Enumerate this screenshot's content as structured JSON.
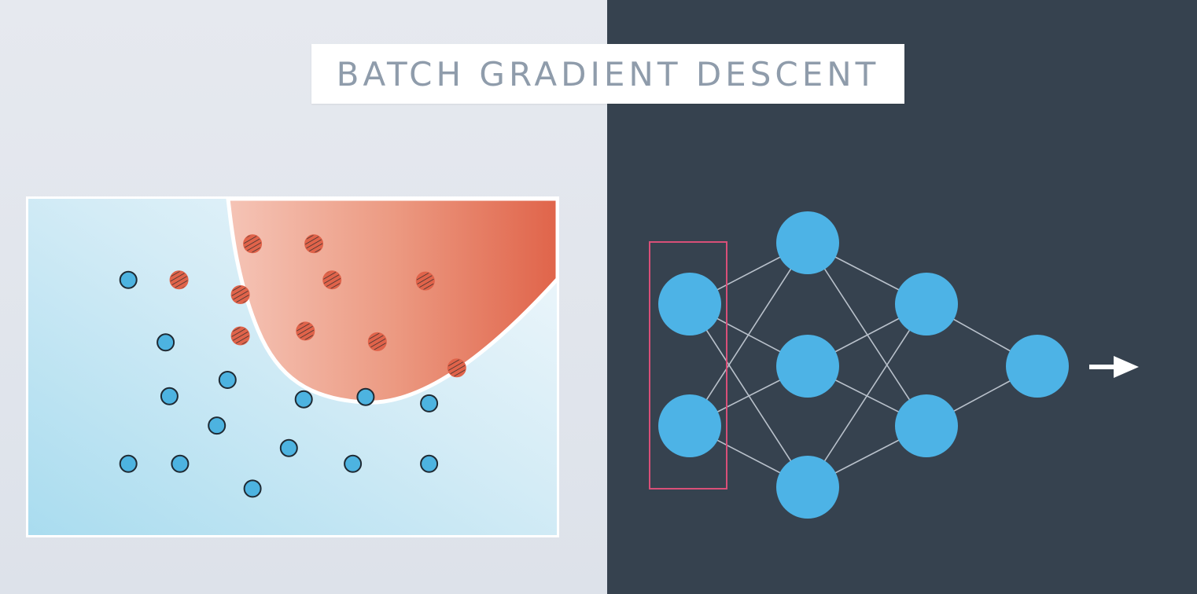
{
  "title": "BATCH GRADIENT DESCENT",
  "colors": {
    "left_background": "#e2e6ec",
    "right_background": "#36424f",
    "blue_point": "#4db3e0",
    "red_point": "#e0634a",
    "red_region": "#e26a4e",
    "neuron": "#4db3e6",
    "edge": "#b9c1cb",
    "highlight_box": "#d94f78",
    "arrow": "#ffffff"
  },
  "chart_data": {
    "type": "scatter",
    "title": "",
    "xlabel": "",
    "ylabel": "",
    "xlim": [
      0,
      100
    ],
    "ylim": [
      0,
      100
    ],
    "grid": false,
    "series": [
      {
        "class": "blue",
        "marker": "circle",
        "points": [
          [
            19.2,
            75.5
          ],
          [
            26.2,
            57.2
          ],
          [
            26.9,
            41.4
          ],
          [
            37.8,
            46.2
          ],
          [
            35.8,
            32.8
          ],
          [
            52.1,
            40.5
          ],
          [
            63.7,
            41.2
          ],
          [
            75.6,
            39.3
          ],
          [
            49.3,
            26.2
          ],
          [
            19.2,
            21.6
          ],
          [
            28.9,
            21.6
          ],
          [
            61.3,
            21.6
          ],
          [
            75.6,
            21.6
          ],
          [
            42.5,
            14.3
          ]
        ]
      },
      {
        "class": "red",
        "marker": "hatched-circle",
        "points": [
          [
            28.7,
            75.5
          ],
          [
            42.5,
            86.1
          ],
          [
            54.0,
            86.1
          ],
          [
            40.2,
            71.2
          ],
          [
            57.4,
            75.5
          ],
          [
            74.9,
            75.2
          ],
          [
            40.2,
            59.1
          ],
          [
            52.4,
            60.5
          ],
          [
            65.9,
            57.4
          ],
          [
            80.8,
            49.7
          ]
        ]
      }
    ]
  },
  "network": {
    "layers": [
      {
        "name": "input",
        "neurons": 2,
        "highlighted": true
      },
      {
        "name": "hidden-1",
        "neurons": 3
      },
      {
        "name": "hidden-2",
        "neurons": 2
      },
      {
        "name": "output",
        "neurons": 1
      }
    ],
    "output_arrow": true
  }
}
